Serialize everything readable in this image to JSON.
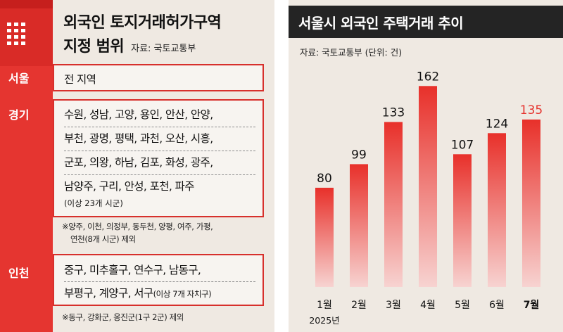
{
  "left_panel": {
    "title_line1": "외국인 토지거래허가구역",
    "title_line2": "지정 범위",
    "source": "자료: 국토교통부",
    "regions": {
      "seoul": {
        "label": "서울",
        "rows": [
          "전 지역"
        ]
      },
      "gyeonggi": {
        "label": "경기",
        "rows": [
          "수원, 성남, 고양, 용인, 안산, 안양,",
          "부천, 광명, 평택, 과천, 오산, 시흥,",
          "군포, 의왕, 하남, 김포, 화성, 광주,",
          "남양주, 구리, 안성, 포천, 파주"
        ],
        "count_note": "(이상 23개 시군)",
        "exclude_note_line1": "※양주, 이천, 의정부, 동두천, 양평, 여주, 가평,",
        "exclude_note_line2": "연천(8개 시군) 제외"
      },
      "incheon": {
        "label": "인천",
        "rows": [
          "중구, 미추홀구, 연수구, 남동구,"
        ],
        "row2_main": "부평구, 계양구, 서구",
        "row2_note": "(이상 7개 자치구)",
        "exclude_note": "※동구, 강화군, 옹진군(1구 2군) 제외"
      }
    }
  },
  "chart_data": {
    "type": "bar",
    "title": "서울시 외국인 주택거래 추이",
    "source": "자료: 국토교통부  (단위: 건)",
    "categories": [
      "1월",
      "2월",
      "3월",
      "4월",
      "5월",
      "6월",
      "7월"
    ],
    "values": [
      80,
      99,
      133,
      162,
      107,
      124,
      135
    ],
    "year_label": "2025년",
    "ylim": [
      0,
      165
    ],
    "highlight_index": 6,
    "colors": {
      "bar_top": "#e8302a",
      "bar_bottom": "#f7d3d1",
      "highlight_text": "#e5322d",
      "text": "#111111"
    },
    "grid": false
  }
}
